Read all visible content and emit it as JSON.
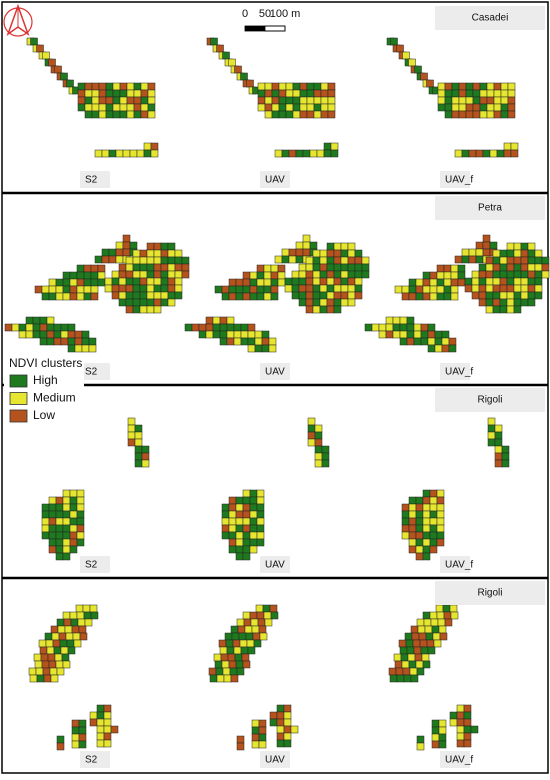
{
  "panels": [
    {
      "site": "Casadei",
      "views": [
        "S2",
        "UAV",
        "UAV_f"
      ]
    },
    {
      "site": "Petra",
      "views": [
        "S2",
        "UAV",
        "UAV_f"
      ]
    },
    {
      "site": "Rigoli",
      "views": [
        "S2",
        "UAV",
        "UAV_f"
      ]
    },
    {
      "site": "Rigoli",
      "views": [
        "S2",
        "UAV",
        "UAV_f"
      ]
    }
  ],
  "scale_bar": {
    "labels": [
      "0",
      "50",
      "100 m"
    ]
  },
  "legend": {
    "title": "NDVI clusters",
    "items": [
      {
        "label": "High",
        "color": "#1f7a1f"
      },
      {
        "label": "Medium",
        "color": "#e6e630"
      },
      {
        "label": "Low",
        "color": "#b4531d"
      }
    ]
  }
}
